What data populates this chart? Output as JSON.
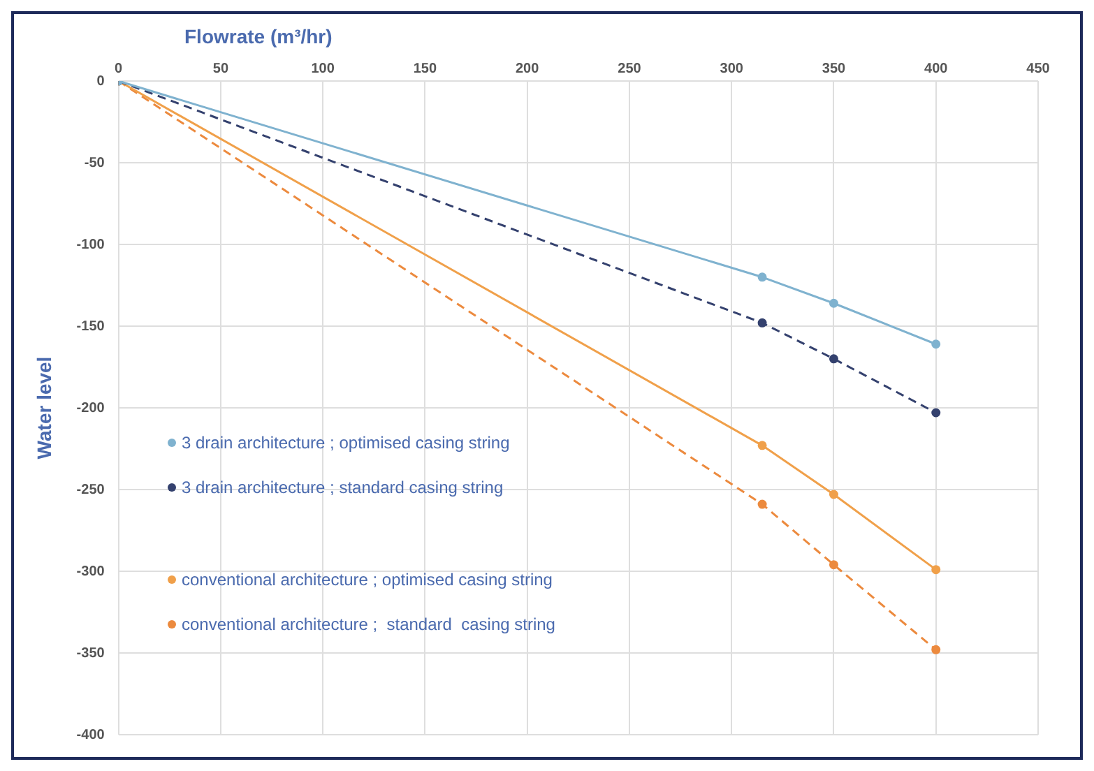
{
  "chart_data": {
    "type": "line",
    "xlabel": "Flowrate (m³/hr)",
    "ylabel": "Water level",
    "xlim": [
      0,
      450
    ],
    "xticks": [
      0,
      50,
      100,
      150,
      200,
      250,
      300,
      350,
      400,
      450
    ],
    "ylim": [
      -400,
      0
    ],
    "yticks": [
      -400,
      -350,
      -300,
      -250,
      -200,
      -150,
      -100,
      -50,
      0
    ],
    "grid": true,
    "legend": "left",
    "marker": "circle",
    "series": [
      {
        "name": "3 drain architecture ; optimised casing string",
        "color": "#7fb2cf",
        "line_style": "solid",
        "x": [
          0,
          315,
          350,
          400
        ],
        "values": [
          0,
          -120,
          -136,
          -161
        ]
      },
      {
        "name": "3 drain architecture ; standard casing string",
        "color": "#34416e",
        "line_style": "dashed",
        "x": [
          0,
          315,
          350,
          400
        ],
        "values": [
          0,
          -148,
          -170,
          -203
        ]
      },
      {
        "name": "conventional architecture ; optimised casing string",
        "color": "#f0a04a",
        "line_style": "solid",
        "x": [
          0,
          315,
          350,
          400
        ],
        "values": [
          0,
          -223,
          -253,
          -299
        ]
      },
      {
        "name": "conventional architecture ;  standard  casing string",
        "color": "#ec8a3e",
        "line_style": "dashed",
        "x": [
          0,
          315,
          350,
          400
        ],
        "values": [
          0,
          -259,
          -296,
          -348
        ]
      }
    ]
  }
}
